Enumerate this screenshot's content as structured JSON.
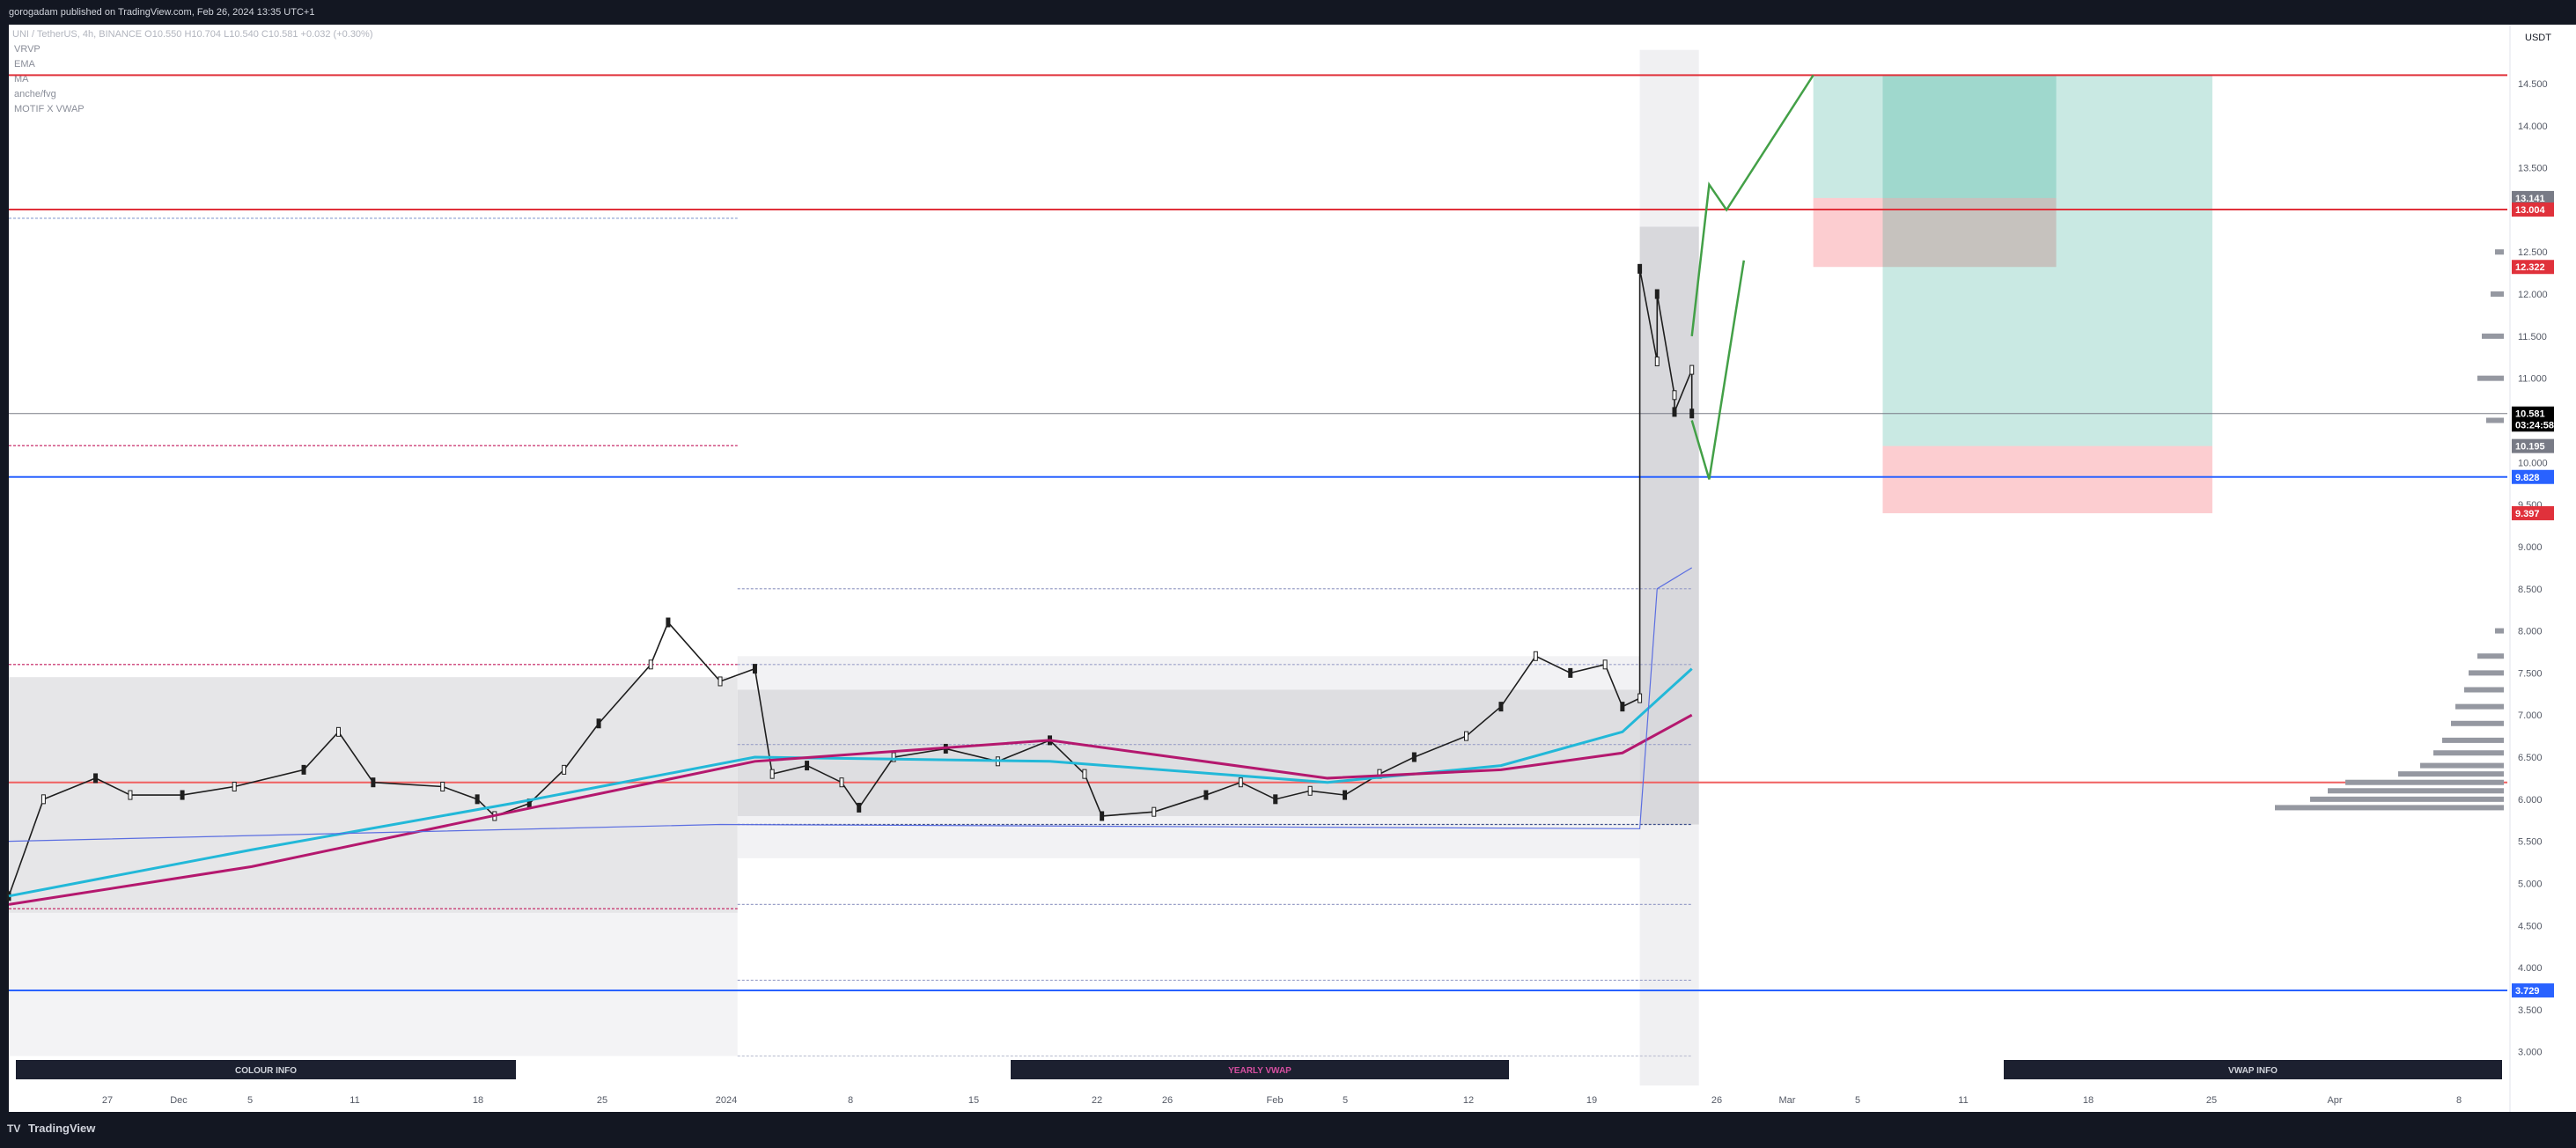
{
  "header": {
    "publisher": "gorogadam published on TradingView.com, Feb 26, 2024 13:35 UTC+1",
    "ohlc": "UNI / TetherUS, 4h, BINANCE  O10.550  H10.704  L10.540  C10.581  +0.032 (+0.30%)"
  },
  "indicators": [
    "VRVP",
    "EMA",
    "MA",
    "anche/fvg",
    "MOTIF X VWAP"
  ],
  "footer": {
    "brand": "TradingView"
  },
  "currency": "USDT",
  "time_axis": {
    "ticks": [
      "27",
      "Dec",
      "5",
      "11",
      "18",
      "25",
      "2024",
      "8",
      "15",
      "22",
      "26",
      "Feb",
      "5",
      "12",
      "19",
      "26",
      "Mar",
      "5",
      "11",
      "18",
      "25",
      "Apr",
      "8"
    ]
  },
  "info_boxes": [
    "COLOUR INFO",
    "YEARLY VWAP",
    "VWAP INFO"
  ],
  "price_labels": [
    {
      "text": "13.141",
      "value": 13.141,
      "color": "#787b86"
    },
    {
      "text": "13.004",
      "value": 13.004,
      "color": "#e0313b"
    },
    {
      "text": "12.322",
      "value": 12.322,
      "color": "#e0313b"
    },
    {
      "text": "10.581",
      "value": 10.581,
      "color": "#000000"
    },
    {
      "text": "03:24:58",
      "value": 10.45,
      "color": "#000000"
    },
    {
      "text": "10.195",
      "value": 10.195,
      "color": "#787b86"
    },
    {
      "text": "9.828",
      "value": 9.828,
      "color": "#2962ff"
    },
    {
      "text": "9.397",
      "value": 9.397,
      "color": "#e0313b"
    },
    {
      "text": "3.729",
      "value": 3.729,
      "color": "#2962ff"
    }
  ],
  "chart_data": {
    "type": "line",
    "title": "UNI / TetherUS, 4h, BINANCE",
    "y_axis": {
      "ylim": [
        2.6,
        15.2
      ],
      "ticks": [
        3.0,
        3.5,
        4.0,
        4.5,
        5.0,
        5.5,
        6.0,
        6.5,
        7.0,
        7.5,
        8.0,
        8.5,
        9.0,
        9.5,
        10.0,
        10.5,
        11.0,
        11.5,
        12.0,
        12.5,
        13.0,
        13.5,
        14.0,
        14.5
      ],
      "tick_labels": [
        "3.000",
        "3.500",
        "4.000",
        "4.500",
        "5.000",
        "5.500",
        "6.000",
        "6.500",
        "7.000",
        "7.500",
        "8.000",
        "8.500",
        "9.000",
        "9.500",
        "10.000",
        "10.500",
        "11.000",
        "11.500",
        "12.000",
        "12.500",
        "13.000",
        "13.500",
        "14.000",
        "14.500"
      ]
    },
    "x_axis_range": [
      "2023-11-21",
      "2024-04-13"
    ],
    "price_path": [
      [
        "2023-11-21",
        4.85
      ],
      [
        "2023-11-23",
        6.0
      ],
      [
        "2023-11-26",
        6.25
      ],
      [
        "2023-11-28",
        6.05
      ],
      [
        "2023-12-01",
        6.05
      ],
      [
        "2023-12-04",
        6.15
      ],
      [
        "2023-12-08",
        6.35
      ],
      [
        "2023-12-10",
        6.8
      ],
      [
        "2023-12-12",
        6.2
      ],
      [
        "2023-12-16",
        6.15
      ],
      [
        "2023-12-18",
        6.0
      ],
      [
        "2023-12-19",
        5.8
      ],
      [
        "2023-12-21",
        5.95
      ],
      [
        "2023-12-23",
        6.35
      ],
      [
        "2023-12-25",
        6.9
      ],
      [
        "2023-12-28",
        7.6
      ],
      [
        "2023-12-29",
        8.1
      ],
      [
        "2024-01-01",
        7.4
      ],
      [
        "2024-01-03",
        7.55
      ],
      [
        "2024-01-04",
        6.3
      ],
      [
        "2024-01-06",
        6.4
      ],
      [
        "2024-01-08",
        6.2
      ],
      [
        "2024-01-09",
        5.9
      ],
      [
        "2024-01-11",
        6.5
      ],
      [
        "2024-01-14",
        6.6
      ],
      [
        "2024-01-17",
        6.45
      ],
      [
        "2024-01-20",
        6.7
      ],
      [
        "2024-01-22",
        6.3
      ],
      [
        "2024-01-23",
        5.8
      ],
      [
        "2024-01-26",
        5.85
      ],
      [
        "2024-01-29",
        6.05
      ],
      [
        "2024-01-31",
        6.2
      ],
      [
        "2024-02-02",
        6.0
      ],
      [
        "2024-02-04",
        6.1
      ],
      [
        "2024-02-06",
        6.05
      ],
      [
        "2024-02-08",
        6.3
      ],
      [
        "2024-02-10",
        6.5
      ],
      [
        "2024-02-13",
        6.75
      ],
      [
        "2024-02-15",
        7.1
      ],
      [
        "2024-02-17",
        7.7
      ],
      [
        "2024-02-19",
        7.5
      ],
      [
        "2024-02-21",
        7.6
      ],
      [
        "2024-02-22",
        7.1
      ],
      [
        "2024-02-23",
        7.2
      ],
      [
        "2024-02-23",
        12.3
      ],
      [
        "2024-02-24",
        11.2
      ],
      [
        "2024-02-24",
        12.0
      ],
      [
        "2024-02-25",
        10.8
      ],
      [
        "2024-02-25",
        10.6
      ],
      [
        "2024-02-26",
        11.1
      ],
      [
        "2024-02-26",
        10.581
      ]
    ],
    "series": [
      {
        "name": "EMA (cyan)",
        "color": "#22b8d8",
        "points": [
          [
            "2023-11-21",
            4.85
          ],
          [
            "2023-12-05",
            5.4
          ],
          [
            "2023-12-20",
            5.95
          ],
          [
            "2024-01-03",
            6.5
          ],
          [
            "2024-01-20",
            6.45
          ],
          [
            "2024-02-05",
            6.2
          ],
          [
            "2024-02-15",
            6.4
          ],
          [
            "2024-02-22",
            6.8
          ],
          [
            "2024-02-26",
            7.55
          ]
        ]
      },
      {
        "name": "MA (magenta)",
        "color": "#b4186e",
        "points": [
          [
            "2023-11-21",
            4.75
          ],
          [
            "2023-12-05",
            5.2
          ],
          [
            "2023-12-20",
            5.85
          ],
          [
            "2024-01-03",
            6.45
          ],
          [
            "2024-01-20",
            6.7
          ],
          [
            "2024-02-05",
            6.25
          ],
          [
            "2024-02-15",
            6.35
          ],
          [
            "2024-02-22",
            6.55
          ],
          [
            "2024-02-26",
            7.0
          ]
        ]
      },
      {
        "name": "VWAP (blue)",
        "color": "#5b6ee1",
        "points": [
          [
            "2023-11-21",
            5.5
          ],
          [
            "2024-01-01",
            5.7
          ],
          [
            "2024-02-23",
            5.65
          ],
          [
            "2024-02-24",
            8.5
          ],
          [
            "2024-02-26",
            8.75
          ]
        ]
      }
    ],
    "levels": [
      {
        "value": 14.6,
        "color": "#e0313b",
        "label": ""
      },
      {
        "value": 13.004,
        "color": "#e0313b",
        "label": "13.004"
      },
      {
        "value": 10.581,
        "color": "#787b86",
        "label": "10.581"
      },
      {
        "value": 9.828,
        "color": "#2962ff",
        "label": "9.828"
      },
      {
        "value": 6.2,
        "color": "#f06060",
        "label": ""
      },
      {
        "value": 3.729,
        "color": "#2962ff",
        "label": "3.729"
      }
    ],
    "projection_path": [
      [
        "2024-02-26",
        10.5
      ],
      [
        "2024-02-27",
        9.8
      ],
      [
        "2024-02-29",
        12.4
      ]
    ],
    "projection_path_2": [
      [
        "2024-02-26",
        11.5
      ],
      [
        "2024-02-27",
        13.3
      ],
      [
        "2024-02-28",
        13.0
      ],
      [
        "2024-03-04",
        14.6
      ]
    ],
    "positions": [
      {
        "from": "2024-03-04",
        "to": "2024-03-18",
        "entry": 13.141,
        "target": 14.6,
        "stop": 12.322
      },
      {
        "from": "2024-03-08",
        "to": "2024-03-27",
        "entry": 10.195,
        "target": 14.6,
        "stop": 9.397
      }
    ],
    "grid": false,
    "legend": "top-left"
  }
}
